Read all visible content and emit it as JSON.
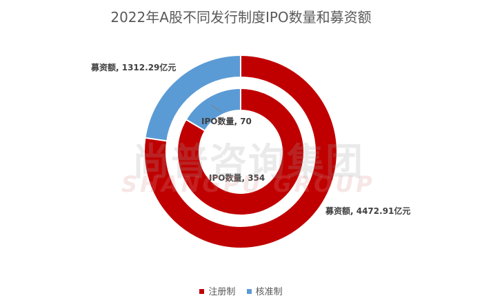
{
  "chart_data": {
    "type": "donut",
    "title": "2022年A股不同发行制度IPO数量和募资额",
    "categories": [
      "注册制",
      "核准制"
    ],
    "series": [
      {
        "values": [
          4472.91,
          1312.29
        ],
        "labels": [
          "募资额, 4472.91亿元",
          "募资额, 1312.29亿元"
        ]
      },
      {
        "values": [
          354,
          70
        ],
        "labels": [
          "IPO数量, 354",
          "IPO数量, 70"
        ]
      }
    ],
    "colors": [
      "#c00000",
      "#5b9bd5"
    ],
    "legend_position": "bottom"
  },
  "watermark": {
    "cn": "尚普咨询集团",
    "en": "SHANGPU GROUP"
  }
}
